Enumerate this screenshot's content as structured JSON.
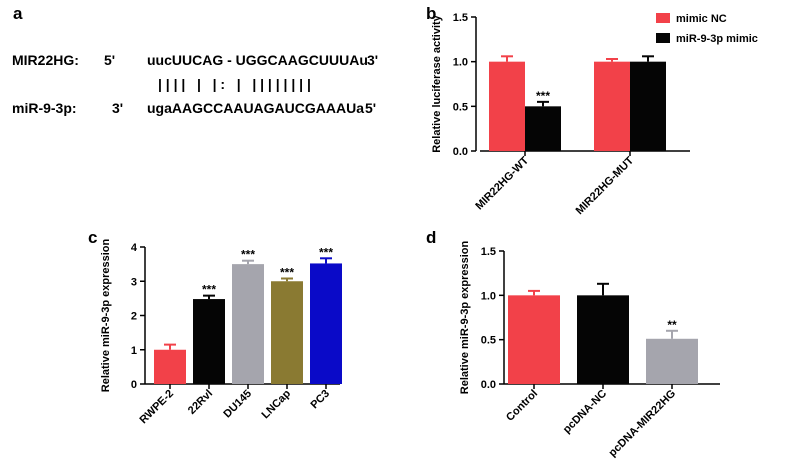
{
  "panels": {
    "a": "a",
    "b": "b",
    "c": "c",
    "d": "d"
  },
  "sequence": {
    "top_name": "MIR22HG:",
    "top_5prime": "5'",
    "top_seq": "uucUUCAG - UGGCAAGCUUUAu",
    "top_3prime": "3'",
    "pairing": "| | | |   |   | :   |   | | | | | | | |",
    "bottom_name": "miR-9-3p:",
    "bottom_3prime": "3'",
    "bottom_seq": "ugaAAGCCAAUAGAUCGAAAUa",
    "bottom_5prime": "5'"
  },
  "chart_data": [
    {
      "id": "b",
      "type": "bar",
      "ylabel": "Relative luciferase activity",
      "ylim": [
        0,
        1.5
      ],
      "yticks": [
        "0.0",
        "0.5",
        "1.0",
        "1.5"
      ],
      "categories": [
        "MIR22HG-WT",
        "MIR22HG-MUT"
      ],
      "series": [
        {
          "name": "mimic NC",
          "color": "#f24149",
          "values": [
            1.0,
            1.0
          ],
          "errors": [
            0.06,
            0.03
          ]
        },
        {
          "name": "miR-9-3p mimic",
          "color": "#050505",
          "values": [
            0.5,
            1.0
          ],
          "errors": [
            0.05,
            0.06
          ]
        }
      ],
      "annotations": [
        {
          "category": 0,
          "series": 1,
          "text": "***"
        }
      ],
      "legend": "top-right"
    },
    {
      "id": "c",
      "type": "bar",
      "ylabel": "Relative miR-9-3p expression",
      "ylim": [
        0,
        4
      ],
      "yticks": [
        "0",
        "1",
        "2",
        "3",
        "4"
      ],
      "categories": [
        "RWPE-2",
        "22Rvl",
        "DU145",
        "LNCap",
        "PC3"
      ],
      "values": [
        1.0,
        2.48,
        3.5,
        3.0,
        3.52
      ],
      "errors": [
        0.15,
        0.1,
        0.1,
        0.08,
        0.15
      ],
      "colors": [
        "#f24149",
        "#050505",
        "#a5a5ad",
        "#8a7a32",
        "#0a0ac8"
      ],
      "labels": [
        "",
        "***",
        "***",
        "***",
        "***"
      ]
    },
    {
      "id": "d",
      "type": "bar",
      "ylabel": "Relative miR-9-3p expression",
      "ylim": [
        0,
        1.5
      ],
      "yticks": [
        "0.0",
        "0.5",
        "1.0",
        "1.5"
      ],
      "categories": [
        "Control",
        "pcDNA-NC",
        "pcDNA-MIR22HG"
      ],
      "values": [
        1.0,
        1.0,
        0.51
      ],
      "errors": [
        0.05,
        0.13,
        0.09
      ],
      "colors": [
        "#f24149",
        "#050505",
        "#a5a5ad"
      ],
      "labels": [
        "",
        "",
        "**"
      ]
    }
  ]
}
